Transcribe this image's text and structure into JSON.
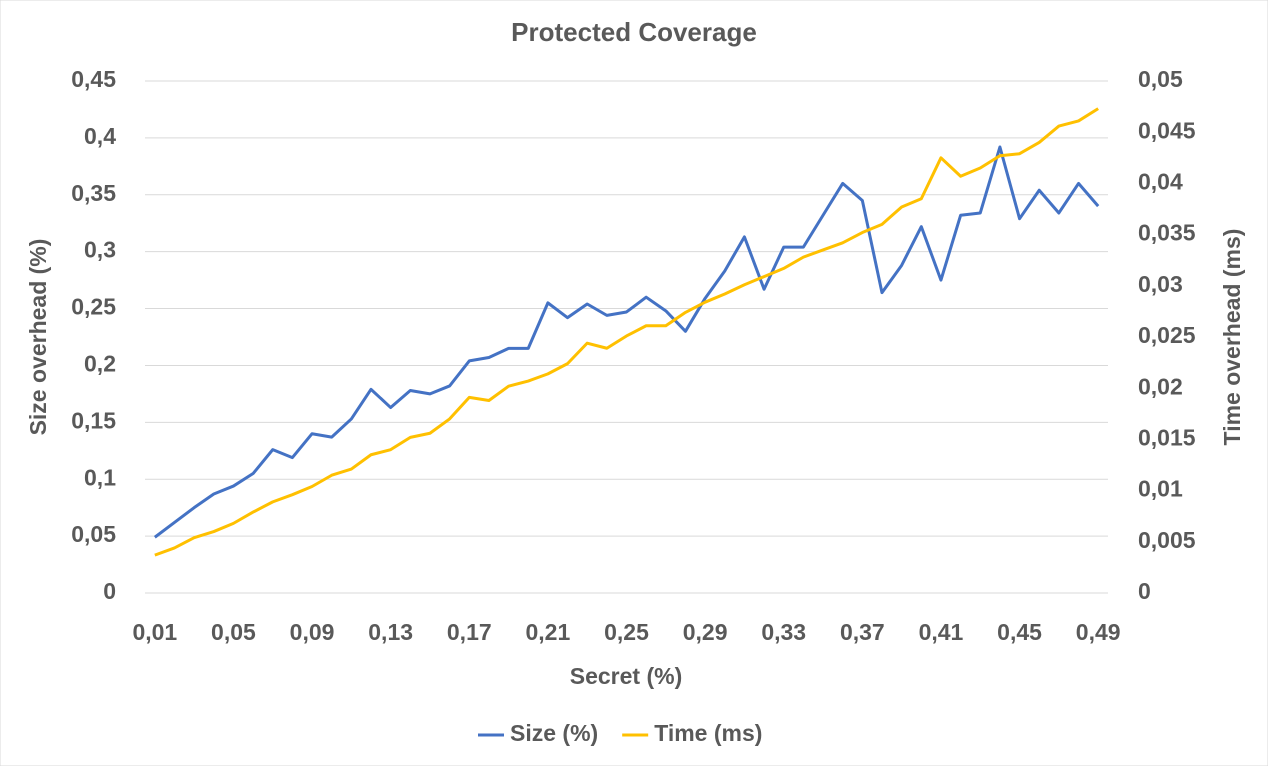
{
  "chart_data": {
    "type": "line",
    "title": "Protected Coverage",
    "x_label": "Secret (%)",
    "y_label": "Size overhead (%)",
    "y2_label": "Time overhead (ms)",
    "categories": [
      "0,01",
      null,
      null,
      null,
      "0,05",
      null,
      null,
      null,
      "0,09",
      null,
      null,
      null,
      "0,13",
      null,
      null,
      null,
      "0,17",
      null,
      null,
      null,
      "0,21",
      null,
      null,
      null,
      "0,25",
      null,
      null,
      null,
      "0,29",
      null,
      null,
      null,
      "0,33",
      null,
      null,
      null,
      "0,37",
      null,
      null,
      null,
      "0,41",
      null,
      null,
      null,
      "0,45",
      null,
      null,
      null,
      "0,49"
    ],
    "series": [
      {
        "name": "Size (%)",
        "color": "#4472c4",
        "values": [
          0.049,
          0.062,
          0.075,
          0.087,
          0.094,
          0.105,
          0.126,
          0.119,
          0.14,
          0.137,
          0.153,
          0.179,
          0.163,
          0.178,
          0.175,
          0.182,
          0.204,
          0.207,
          0.215,
          0.215,
          0.255,
          0.242,
          0.254,
          0.244,
          0.247,
          0.26,
          0.248,
          0.23,
          0.259,
          0.283,
          0.313,
          0.267,
          0.304,
          0.304,
          0.332,
          0.36,
          0.345,
          0.264,
          0.288,
          0.322,
          0.275,
          0.332,
          0.334,
          0.392,
          0.329,
          0.354,
          0.334,
          0.36,
          0.34
        ]
      },
      {
        "name": "Time (ms)",
        "color": "#ffc000",
        "axis": "y2",
        "values": [
          0.0037,
          0.0044,
          0.0054,
          0.006,
          0.0068,
          0.0079,
          0.0089,
          0.0096,
          0.0104,
          0.0115,
          0.0121,
          0.0135,
          0.014,
          0.0152,
          0.0156,
          0.017,
          0.0191,
          0.0188,
          0.0202,
          0.0207,
          0.0214,
          0.0224,
          0.0244,
          0.0239,
          0.0251,
          0.0261,
          0.0261,
          0.0274,
          0.0284,
          0.0292,
          0.0301,
          0.0309,
          0.0317,
          0.0328,
          0.0335,
          0.0342,
          0.0352,
          0.036,
          0.0377,
          0.0385,
          0.0425,
          0.0407,
          0.0415,
          0.0427,
          0.0429,
          0.044,
          0.0456,
          0.0461,
          0.0473
        ]
      }
    ],
    "ylim": [
      0,
      0.45
    ],
    "yticks": [
      0,
      {
        "value": 0.05,
        "label": "0,05"
      },
      {
        "value": 0.1,
        "label": "0,1"
      },
      {
        "value": 0.15,
        "label": "0,15"
      },
      {
        "value": 0.2,
        "label": "0,2"
      },
      {
        "value": 0.25,
        "label": "0,25"
      },
      {
        "value": 0.3,
        "label": "0,3"
      },
      {
        "value": 0.35,
        "label": "0,35"
      },
      {
        "value": 0.4,
        "label": "0,4"
      },
      {
        "value": 0.45,
        "label": "0,45"
      }
    ],
    "y2lim": [
      0,
      0.05
    ],
    "y2ticks": [
      0,
      {
        "value": 0.005,
        "label": "0,005"
      },
      {
        "value": 0.01,
        "label": "0,01"
      },
      {
        "value": 0.015,
        "label": "0,015"
      },
      {
        "value": 0.02,
        "label": "0,02"
      },
      {
        "value": 0.025,
        "label": "0,025"
      },
      {
        "value": 0.03,
        "label": "0,03"
      },
      {
        "value": 0.035,
        "label": "0,035"
      },
      {
        "value": 0.04,
        "label": "0,04"
      },
      {
        "value": 0.045,
        "label": "0,045"
      },
      {
        "value": 0.05,
        "label": "0,05"
      }
    ],
    "grid": true,
    "legend": "bottom"
  }
}
